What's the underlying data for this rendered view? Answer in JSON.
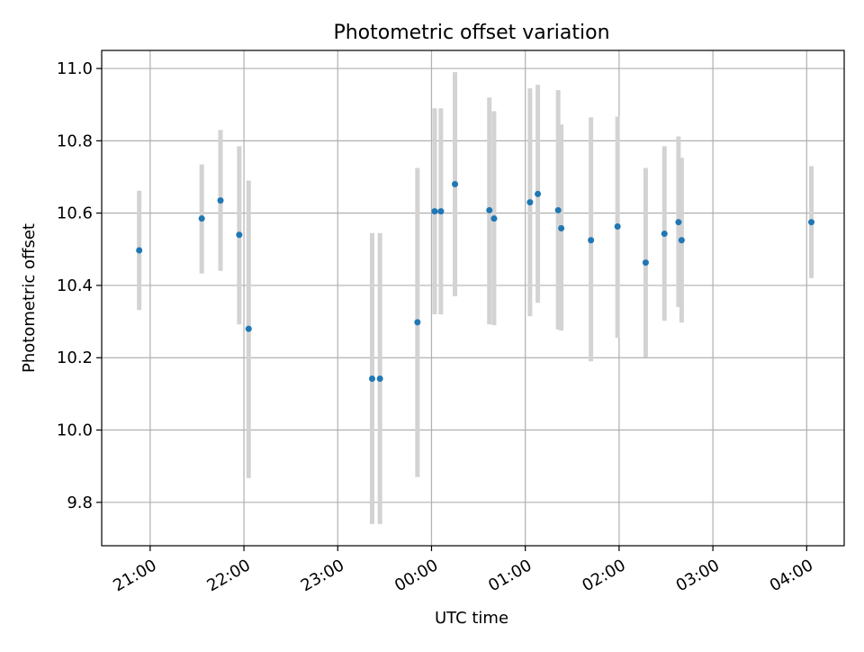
{
  "chart_data": {
    "type": "scatter",
    "title": "Photometric offset variation",
    "xlabel": "UTC time",
    "ylabel": "Photometric offset",
    "x_tick_labels": [
      "21:00",
      "22:00",
      "23:00",
      "00:00",
      "01:00",
      "02:00",
      "03:00",
      "04:00"
    ],
    "y_tick_labels": [
      "9.8",
      "10.0",
      "10.2",
      "10.4",
      "10.6",
      "10.8",
      "11.0"
    ],
    "xlim_utc": [
      "20:29",
      "04:24"
    ],
    "ylim": [
      9.68,
      11.05
    ],
    "grid": true,
    "errorbar_color": "#d3d3d3",
    "point_color": "#1f77b4",
    "points": [
      {
        "time": "20:53",
        "y": 10.497,
        "ymin": 10.332,
        "ymax": 10.662
      },
      {
        "time": "21:33",
        "y": 10.585,
        "ymin": 10.433,
        "ymax": 10.735
      },
      {
        "time": "21:45",
        "y": 10.635,
        "ymin": 10.44,
        "ymax": 10.83
      },
      {
        "time": "21:57",
        "y": 10.54,
        "ymin": 10.292,
        "ymax": 10.785
      },
      {
        "time": "22:03",
        "y": 10.28,
        "ymin": 9.867,
        "ymax": 10.69
      },
      {
        "time": "23:22",
        "y": 10.142,
        "ymin": 9.74,
        "ymax": 10.545
      },
      {
        "time": "23:27",
        "y": 10.142,
        "ymin": 9.74,
        "ymax": 10.545
      },
      {
        "time": "23:51",
        "y": 10.298,
        "ymin": 9.87,
        "ymax": 10.725
      },
      {
        "time": "00:02",
        "y": 10.605,
        "ymin": 10.32,
        "ymax": 10.89
      },
      {
        "time": "00:06",
        "y": 10.605,
        "ymin": 10.32,
        "ymax": 10.89
      },
      {
        "time": "00:15",
        "y": 10.68,
        "ymin": 10.37,
        "ymax": 10.99
      },
      {
        "time": "00:37",
        "y": 10.608,
        "ymin": 10.292,
        "ymax": 10.92
      },
      {
        "time": "00:40",
        "y": 10.585,
        "ymin": 10.29,
        "ymax": 10.882
      },
      {
        "time": "01:03",
        "y": 10.63,
        "ymin": 10.315,
        "ymax": 10.945
      },
      {
        "time": "01:08",
        "y": 10.653,
        "ymin": 10.352,
        "ymax": 10.955
      },
      {
        "time": "01:21",
        "y": 10.608,
        "ymin": 10.278,
        "ymax": 10.94
      },
      {
        "time": "01:23",
        "y": 10.558,
        "ymin": 10.275,
        "ymax": 10.845
      },
      {
        "time": "01:42",
        "y": 10.525,
        "ymin": 10.19,
        "ymax": 10.865
      },
      {
        "time": "01:59",
        "y": 10.563,
        "ymin": 10.255,
        "ymax": 10.867
      },
      {
        "time": "02:17",
        "y": 10.463,
        "ymin": 10.202,
        "ymax": 10.725
      },
      {
        "time": "02:29",
        "y": 10.543,
        "ymin": 10.302,
        "ymax": 10.785
      },
      {
        "time": "02:38",
        "y": 10.575,
        "ymin": 10.34,
        "ymax": 10.812
      },
      {
        "time": "02:40",
        "y": 10.525,
        "ymin": 10.297,
        "ymax": 10.753
      },
      {
        "time": "04:03",
        "y": 10.575,
        "ymin": 10.42,
        "ymax": 10.73
      }
    ]
  }
}
